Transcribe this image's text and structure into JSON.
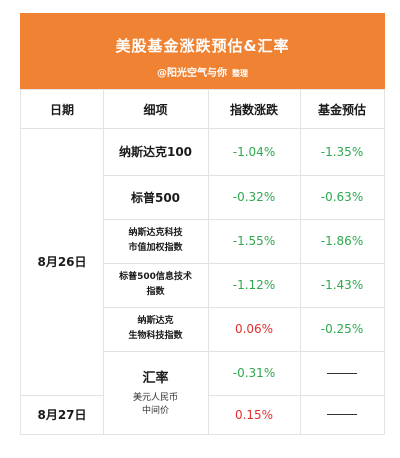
{
  "header": {
    "title": "美股基金涨跌预估&汇率",
    "author": "@阳光空气与你",
    "author_suffix": "整理"
  },
  "columns": [
    "日期",
    "细项",
    "指数涨跌",
    "基金预估"
  ],
  "dates": [
    "8月26日",
    "8月27日"
  ],
  "rows": [
    {
      "item": "纳斯达克100",
      "index": "-1.04%",
      "fund": "-1.35%"
    },
    {
      "item": "标普500",
      "index": "-0.32%",
      "fund": "-0.63%"
    },
    {
      "item_line1": "纳斯达克科技",
      "item_line2": "市值加权指数",
      "index": "-1.55%",
      "fund": "-1.86%"
    },
    {
      "item_line1": "标普500信息技术",
      "item_line2": "指数",
      "index": "-1.12%",
      "fund": "-1.43%"
    },
    {
      "item_line1": "纳斯达克",
      "item_line2": "生物科技指数",
      "index": "0.06%",
      "fund": "-0.25%"
    }
  ],
  "fx": {
    "title": "汇率",
    "line1": "美元人民币",
    "line2": "中间价",
    "day1": "-0.31%",
    "day2": "0.15%"
  },
  "colors": {
    "banner": "#ef8233",
    "up": "#e0302c",
    "down": "#2fa84f"
  }
}
